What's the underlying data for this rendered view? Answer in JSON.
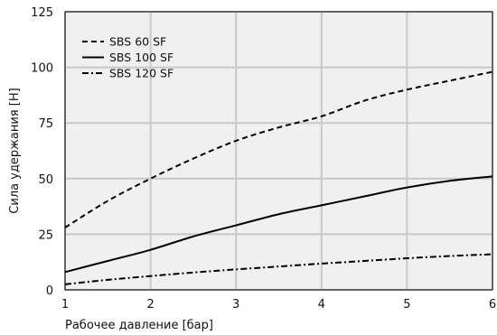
{
  "chart_data": {
    "type": "line",
    "title": "",
    "xlabel": "Рабочее давление [бар]",
    "ylabel": "Сила удержания [Н]",
    "xlim": [
      1,
      6
    ],
    "ylim": [
      0,
      125
    ],
    "xticks": [
      "1",
      "2",
      "3",
      "4",
      "5",
      "6"
    ],
    "yticks": [
      "0",
      "25",
      "50",
      "75",
      "100",
      "125"
    ],
    "grid": true,
    "legend_position": "top-left",
    "background_color": "#f0f0f0",
    "grid_color": "#c8c8c8",
    "series": [
      {
        "name": "SBS 60 SF",
        "style": "dashed",
        "color": "#000000",
        "x": [
          1,
          1.5,
          2,
          2.5,
          3,
          3.5,
          4,
          4.5,
          5,
          5.5,
          6
        ],
        "y": [
          28,
          40,
          50,
          59,
          67,
          73,
          78,
          85,
          90,
          94,
          98
        ]
      },
      {
        "name": "SBS 100 SF",
        "style": "solid",
        "color": "#000000",
        "x": [
          1,
          1.5,
          2,
          2.5,
          3,
          3.5,
          4,
          4.5,
          5,
          5.5,
          6
        ],
        "y": [
          8,
          13,
          18,
          24,
          29,
          34,
          38,
          42,
          46,
          49,
          51
        ]
      },
      {
        "name": "SBS 120 SF",
        "style": "dashdot",
        "color": "#000000",
        "x": [
          1,
          1.5,
          2,
          2.5,
          3,
          3.5,
          4,
          4.5,
          5,
          5.5,
          6
        ],
        "y": [
          2.5,
          4.5,
          6.2,
          7.8,
          9.2,
          10.5,
          11.8,
          13,
          14.2,
          15.2,
          16
        ]
      }
    ]
  }
}
